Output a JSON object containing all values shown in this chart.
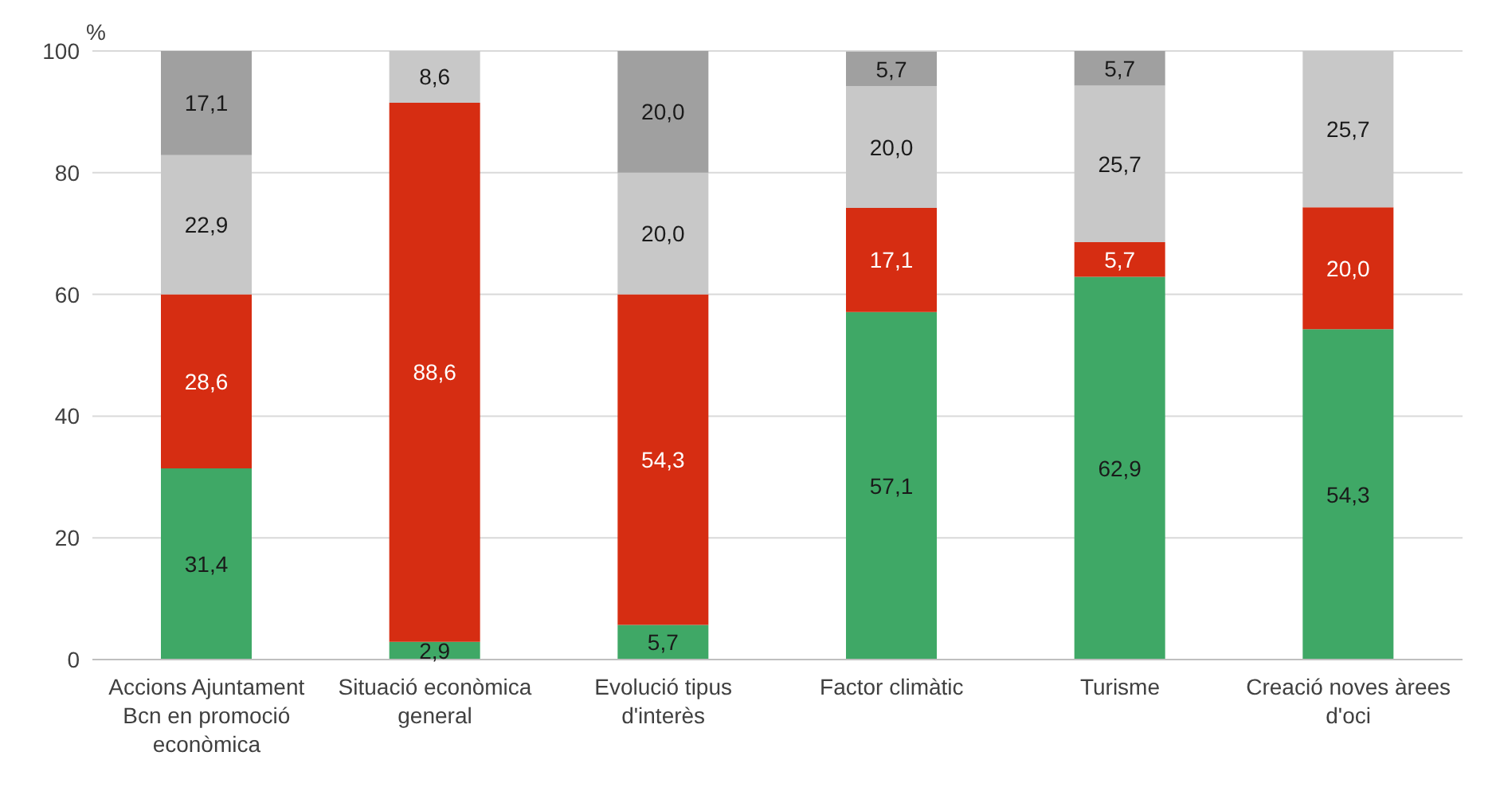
{
  "chart_data": {
    "type": "bar",
    "stacked": true,
    "ylabel": "%",
    "categories": [
      "Accions Ajuntament Bcn en promoció econòmica",
      "Situació econòmica general",
      "Evolució tipus d'interès",
      "Factor climàtic",
      "Turisme",
      "Creació noves àrees d'oci"
    ],
    "series": [
      {
        "color": "#3fa866",
        "values": [
          31.4,
          2.9,
          5.7,
          57.1,
          62.9,
          54.3
        ],
        "value_labels": [
          "31,4",
          "2,9",
          "5,7",
          "57,1",
          "62,9",
          "54,3"
        ]
      },
      {
        "color": "#d62d12",
        "values": [
          28.6,
          88.6,
          54.3,
          17.1,
          5.7,
          20.0
        ],
        "value_labels": [
          "28,6",
          "88,6",
          "54,3",
          "17,1",
          "5,7",
          "20,0"
        ]
      },
      {
        "color": "#c8c8c8",
        "values": [
          22.9,
          8.6,
          20.0,
          20.0,
          25.7,
          25.7
        ],
        "value_labels": [
          "22,9",
          "8,6",
          "20,0",
          "20,0",
          "25,7",
          "25,7"
        ]
      },
      {
        "color": "#a0a0a0",
        "values": [
          17.1,
          null,
          20.0,
          5.7,
          5.7,
          null
        ],
        "value_labels": [
          "17,1",
          null,
          "20,0",
          "5,7",
          "5,7",
          null
        ]
      }
    ],
    "ylim": [
      0,
      100
    ],
    "yticks": [
      0,
      20,
      40,
      60,
      80,
      100
    ],
    "grid": "y",
    "legend": false
  }
}
